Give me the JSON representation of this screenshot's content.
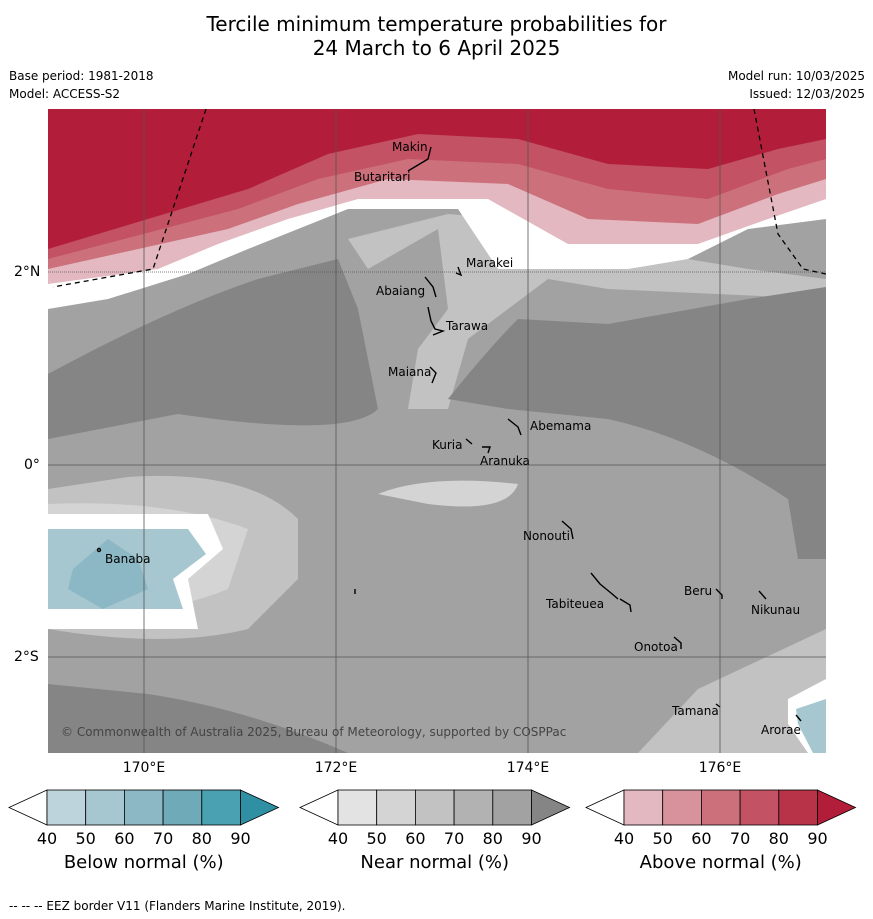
{
  "title_line1": "Tercile minimum temperature probabilities for",
  "title_line2": "24 March to 6 April 2025",
  "base_period": "Base period: 1981-2018",
  "model": "Model: ACCESS-S2",
  "model_run": "Model run: 10/03/2025",
  "issued": "Issued: 12/03/2025",
  "copyright": "© Commonwealth of Australia 2025, Bureau of Meteorology, supported by COSPPac",
  "footnote": "--  --  -- EEZ border V11 (Flanders Marine Institute, 2019).",
  "axes": {
    "lon_labels": [
      "170°E",
      "172°E",
      "174°E",
      "176°E"
    ],
    "lat_labels": [
      "2°N",
      "0°",
      "2°S"
    ]
  },
  "places": [
    "Makin",
    "Butaritari",
    "Marakei",
    "Abaiang",
    "Tarawa",
    "Maiana",
    "Abemama",
    "Kuria",
    "Aranuka",
    "Nonouti",
    "Banaba",
    "Beru",
    "Tabiteuea",
    "Nikunau",
    "Onotoa",
    "Tamana",
    "Arorae"
  ],
  "colorbars": [
    {
      "title": "Below normal (%)",
      "ticks": [
        "40",
        "50",
        "60",
        "70",
        "80",
        "90"
      ],
      "colors": [
        "#ffffff",
        "#bdd4dc",
        "#a6c7cf",
        "#8cb7c4",
        "#6eaab8",
        "#4aa1b2",
        "#2f8fa3"
      ]
    },
    {
      "title": "Near normal (%)",
      "ticks": [
        "40",
        "50",
        "60",
        "70",
        "80",
        "90"
      ],
      "colors": [
        "#ffffff",
        "#e3e3e3",
        "#d4d4d4",
        "#c2c2c2",
        "#b2b2b2",
        "#a2a2a2",
        "#858585"
      ]
    },
    {
      "title": "Above normal (%)",
      "ticks": [
        "40",
        "50",
        "60",
        "70",
        "80",
        "90"
      ],
      "colors": [
        "#ffffff",
        "#e3b8c0",
        "#d8929c",
        "#cc717c",
        "#c25264",
        "#b83347",
        "#b21e3a"
      ]
    }
  ]
}
